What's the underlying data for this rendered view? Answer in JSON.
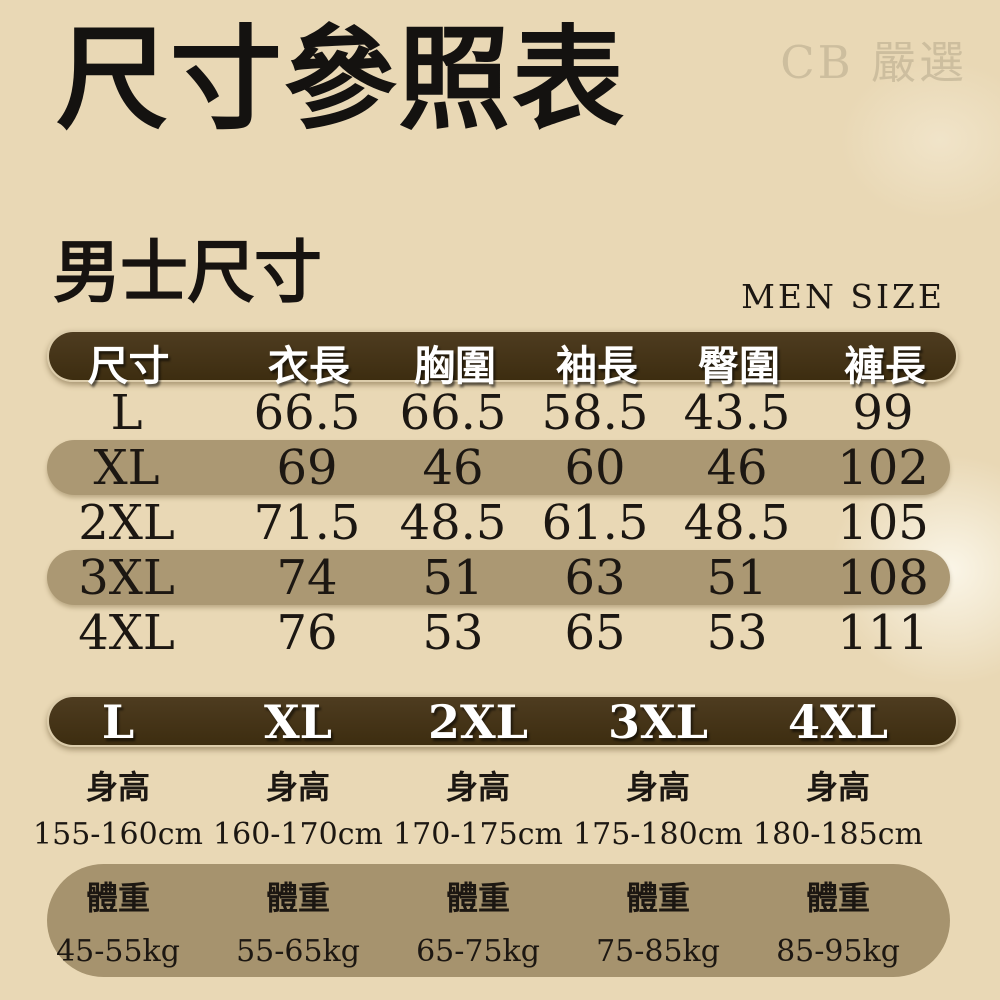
{
  "page": {
    "title": "尺寸參照表",
    "watermark": "CB 嚴選",
    "men_section": {
      "title": "男士尺寸",
      "subtitle": "MEN SIZE"
    }
  },
  "size_table": {
    "headers": [
      "尺寸",
      "衣長",
      "胸圍",
      "袖長",
      "臀圍",
      "褲長"
    ],
    "rows": [
      {
        "size": "L",
        "values": [
          "66.5",
          "66.5",
          "58.5",
          "43.5",
          "99"
        ],
        "highlighted": false
      },
      {
        "size": "XL",
        "values": [
          "69",
          "46",
          "60",
          "46",
          "102"
        ],
        "highlighted": true
      },
      {
        "size": "2XL",
        "values": [
          "71.5",
          "48.5",
          "61.5",
          "48.5",
          "105"
        ],
        "highlighted": false
      },
      {
        "size": "3XL",
        "values": [
          "74",
          "51",
          "63",
          "51",
          "108"
        ],
        "highlighted": true
      },
      {
        "size": "4XL",
        "values": [
          "76",
          "53",
          "65",
          "53",
          "111"
        ],
        "highlighted": false
      }
    ]
  },
  "fit_table": {
    "sizes": [
      "L",
      "XL",
      "2XL",
      "3XL",
      "4XL"
    ],
    "height_label": "身高",
    "heights": [
      "155-160cm",
      "160-170cm",
      "170-175cm",
      "175-180cm",
      "180-185cm"
    ],
    "weight_label": "體重",
    "weights": [
      "45-55kg",
      "55-65kg",
      "65-75kg",
      "75-85kg",
      "85-95kg"
    ]
  },
  "colors": {
    "background": "#e9d8b5",
    "bar_dark": "#44331a",
    "bar_dark_light": "#4e3c20",
    "band_tan": "#ab9873",
    "weight_band": "#a6936e",
    "text_black": "#1c1712",
    "text_white": "#ffffff",
    "watermark": "#b9ac8f",
    "bar_outline": "#ead9b4"
  },
  "chart_data": [
    {
      "type": "table",
      "title": "尺寸參照表",
      "section": "男士尺寸 (MEN SIZE)",
      "columns": [
        "尺寸",
        "衣長",
        "胸圍",
        "袖長",
        "臀圍",
        "褲長"
      ],
      "rows": [
        [
          "L",
          66.5,
          66.5,
          58.5,
          43.5,
          99
        ],
        [
          "XL",
          69,
          46,
          60,
          46,
          102
        ],
        [
          "2XL",
          71.5,
          48.5,
          61.5,
          48.5,
          105
        ],
        [
          "3XL",
          74,
          51,
          63,
          51,
          108
        ],
        [
          "4XL",
          76,
          53,
          65,
          53,
          111
        ]
      ]
    },
    {
      "type": "table",
      "columns": [
        "L",
        "XL",
        "2XL",
        "3XL",
        "4XL"
      ],
      "rows": [
        [
          "身高",
          "155-160cm",
          "160-170cm",
          "170-175cm",
          "175-180cm",
          "180-185cm"
        ],
        [
          "體重",
          "45-55kg",
          "55-65kg",
          "65-75kg",
          "75-85kg",
          "85-95kg"
        ]
      ]
    }
  ]
}
